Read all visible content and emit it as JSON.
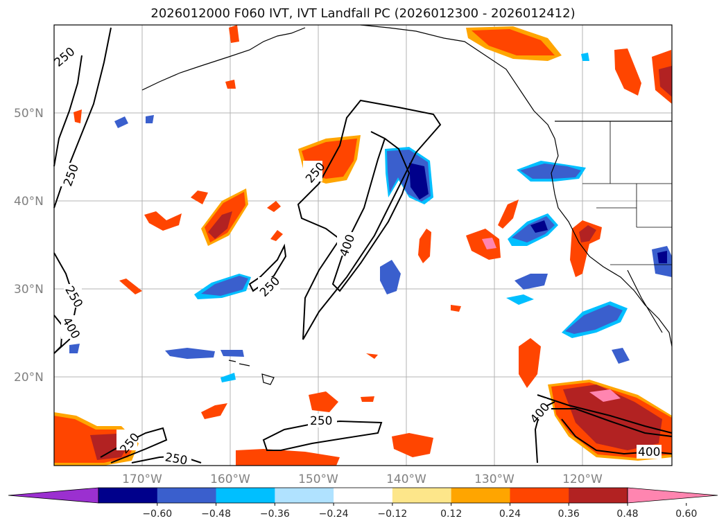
{
  "title": "2026012000 F060 IVT, IVT Landfall PC (2026012300 - 2026012412)",
  "map": {
    "lat_labels": [
      "50°N",
      "40°N",
      "30°N",
      "20°N"
    ],
    "lon_labels": [
      "170°W",
      "160°W",
      "150°W",
      "140°W",
      "130°W",
      "120°W"
    ],
    "contour_labels": [
      "250",
      "250",
      "400",
      "400",
      "250",
      "250",
      "400",
      "250",
      "250",
      "250",
      "250",
      "400"
    ]
  },
  "colorbar": {
    "ticks": [
      "−0.60",
      "−0.48",
      "−0.36",
      "−0.24",
      "−0.12",
      "0.12",
      "0.24",
      "0.36",
      "0.48",
      "0.60"
    ],
    "colors": [
      "#9b30d0",
      "#00008b",
      "#3a5fcd",
      "#00bfff",
      "#b0e2ff",
      "#ffffff",
      "#fde68a",
      "#ffa500",
      "#ff4500",
      "#b22222",
      "#ff85b0"
    ]
  },
  "colors": {
    "grid": "#b3b3b3",
    "coast": "#000000",
    "pos_low": "#ffa500",
    "pos_mid": "#ff4500",
    "pos_high": "#b22222",
    "pos_max": "#ff85b0",
    "neg_low": "#00bfff",
    "neg_mid": "#3a5fcd",
    "neg_high": "#00008b"
  }
}
